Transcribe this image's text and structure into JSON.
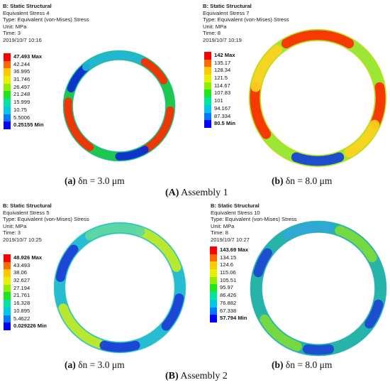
{
  "panels": [
    {
      "header": [
        "B: Static Structural",
        "Equivalent Stress 4",
        "Type: Equivalent (von-Mises) Stress",
        "Unit: MPa",
        "Time: 3",
        "2019/10/7 10:16"
      ],
      "legend": [
        "47.493 Max",
        "42.244",
        "36.995",
        "31.746",
        "26.497",
        "21.248",
        "15.999",
        "10.75",
        "5.5006",
        "0.25155 Min"
      ],
      "caption_letter": "(a)",
      "caption_text": " δn = 3.0 μm"
    },
    {
      "header": [
        "B: Static Structural",
        "Equivalent Stress 7",
        "Type: Equivalent (von-Mises) Stress",
        "Unit: MPa",
        "Time: 8",
        "2019/10/7 10:19"
      ],
      "legend": [
        "142 Max",
        "135.17",
        "128.34",
        "121.5",
        "114.67",
        "107.83",
        "101",
        "94.167",
        "87.334",
        "80.5 Min"
      ],
      "caption_letter": "(b)",
      "caption_text": " δn = 8.0 μm"
    },
    {
      "header": [
        "B: Static Structural",
        "Equivalent Stress 5",
        "Type: Equivalent (von-Mises) Stress",
        "Unit: MPa",
        "Time: 3",
        "2019/10/7 10:25"
      ],
      "legend": [
        "48.926 Max",
        "43.493",
        "38.06",
        "32.627",
        "27.194",
        "21.761",
        "16.328",
        "10.895",
        "5.4622",
        "0.029226 Min"
      ],
      "caption_letter": "(a)",
      "caption_text": " δn = 3.0 μm"
    },
    {
      "header": [
        "B: Static Structural",
        "Equivalent Stress 10",
        "Type: Equivalent (von-Mises) Stress",
        "Unit: MPa",
        "Time: 8",
        "2019/10/7 10:27"
      ],
      "legend": [
        "143.69 Max",
        "134.15",
        "124.6",
        "115.06",
        "105.51",
        "95.97",
        "86.426",
        "76.882",
        "67.338",
        "57.794 Min"
      ],
      "caption_letter": "(b)",
      "caption_text": " δn = 8.0 μm"
    }
  ],
  "assemblies": [
    {
      "letter": "(A)",
      "text": " Assembly 1"
    },
    {
      "letter": "(B)",
      "text": " Assembly 2"
    }
  ],
  "colors": {
    "legend_scale": [
      "#ff0000",
      "#ff6a00",
      "#ffc800",
      "#e6f000",
      "#8cf000",
      "#1ee61e",
      "#00e6a0",
      "#00c8e6",
      "#0078ff",
      "#0000ff"
    ],
    "ring_a1": {
      "base": "#1ec850",
      "hot": "#ff2a00",
      "cold": "#0a28d8",
      "mid": "#22b4dc"
    },
    "ring_b1": {
      "base": "#9ce634",
      "hot": "#ff2a00",
      "cold": "#1440d8",
      "mid": "#ffd21e"
    },
    "ring_a2": {
      "base": "#26bcd2",
      "hot": "#c6ec22",
      "cold": "#1a3cd6",
      "mid": "#60d8a0"
    },
    "ring_b2": {
      "base": "#26b4a8",
      "hot": "#7edc3a",
      "cold": "#1a46d4",
      "mid": "#30a8d8"
    }
  }
}
